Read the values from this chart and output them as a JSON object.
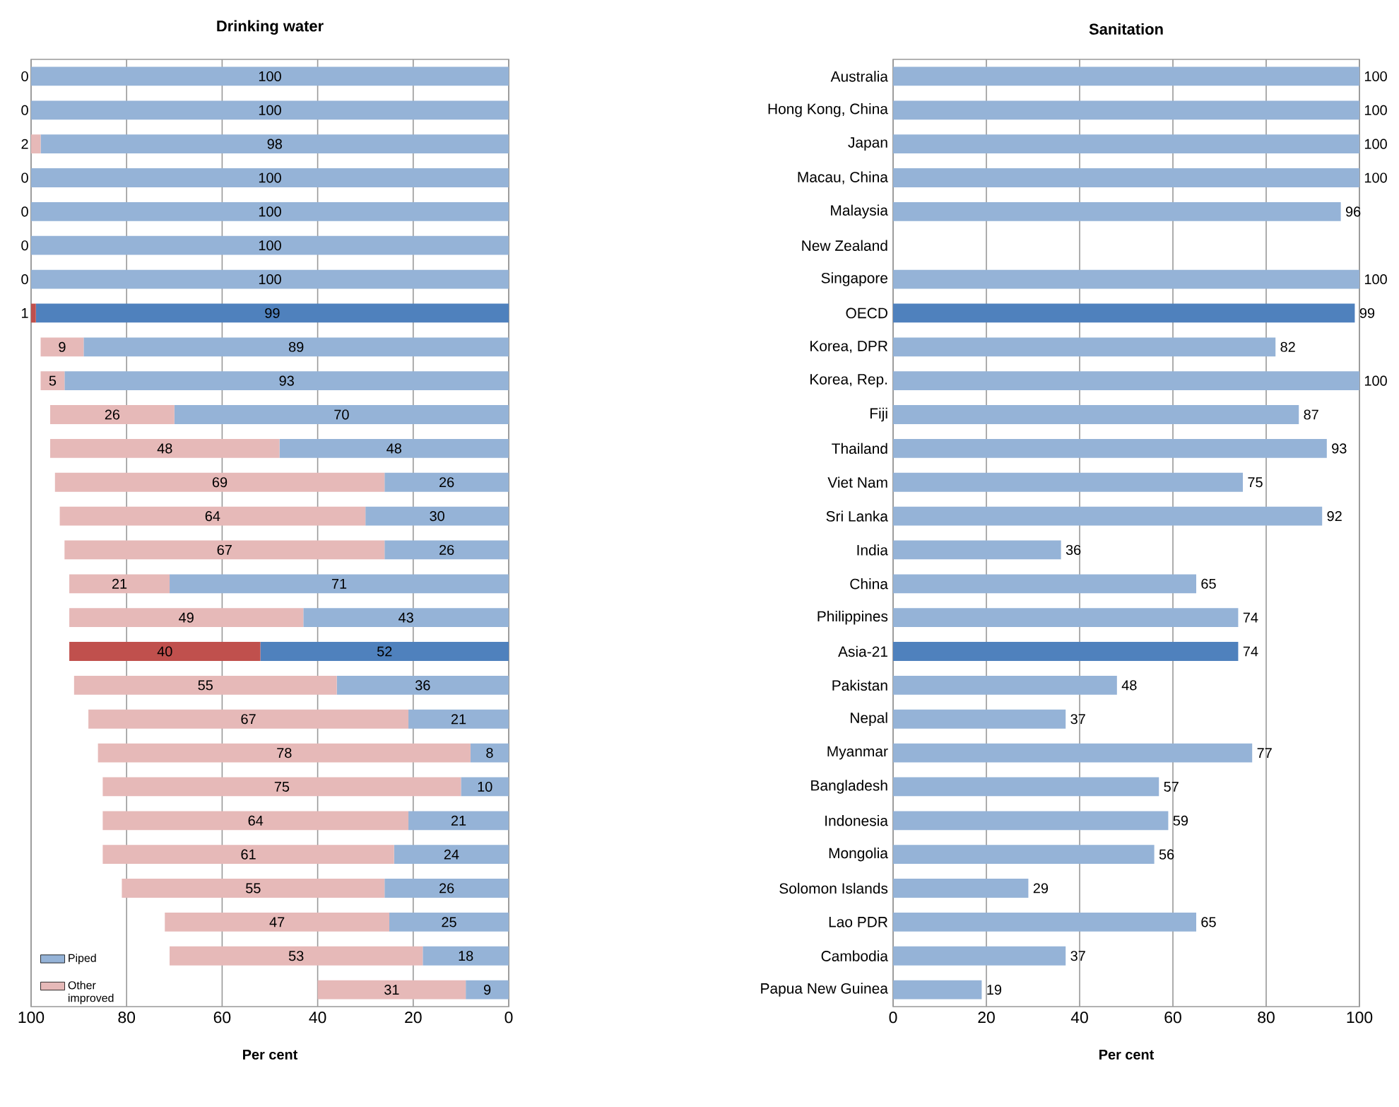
{
  "chart_data": [
    {
      "type": "bar",
      "orientation": "horizontal",
      "stacked": true,
      "title": "Drinking water",
      "xlabel": "Per cent",
      "categories": [
        null,
        null,
        null,
        null,
        null,
        null,
        null,
        null,
        null,
        null,
        null,
        null,
        null,
        null,
        null,
        null,
        null,
        null,
        null,
        null,
        null,
        null,
        null,
        null,
        null,
        null,
        null,
        null
      ],
      "series": [
        {
          "name": "Piped",
          "color": "#95b3d7",
          "colors": [
            "#95b3d7",
            "#95b3d7",
            "#95b3d7",
            "#95b3d7",
            "#95b3d7",
            "#95b3d7",
            "#95b3d7",
            "#4f81bd",
            "#95b3d7",
            "#95b3d7",
            "#95b3d7",
            "#95b3d7",
            "#95b3d7",
            "#95b3d7",
            "#95b3d7",
            "#95b3d7",
            "#95b3d7",
            "#4f81bd",
            "#95b3d7",
            "#95b3d7",
            "#95b3d7",
            "#95b3d7",
            "#95b3d7",
            "#95b3d7",
            "#95b3d7",
            "#95b3d7",
            "#95b3d7",
            "#95b3d7"
          ],
          "values": [
            100,
            100,
            98,
            100,
            100,
            100,
            100,
            99,
            89,
            93,
            70,
            48,
            26,
            30,
            26,
            71,
            43,
            52,
            36,
            21,
            8,
            10,
            21,
            24,
            26,
            25,
            18,
            9
          ]
        },
        {
          "name": "Other improved",
          "color": "#e6b9b8",
          "colors": [
            "#e6b9b8",
            "#e6b9b8",
            "#e6b9b8",
            "#e6b9b8",
            "#e6b9b8",
            "#e6b9b8",
            "#e6b9b8",
            "#c0504d",
            "#e6b9b8",
            "#e6b9b8",
            "#e6b9b8",
            "#e6b9b8",
            "#e6b9b8",
            "#e6b9b8",
            "#e6b9b8",
            "#e6b9b8",
            "#e6b9b8",
            "#c0504d",
            "#e6b9b8",
            "#e6b9b8",
            "#e6b9b8",
            "#e6b9b8",
            "#e6b9b8",
            "#e6b9b8",
            "#e6b9b8",
            "#e6b9b8",
            "#e6b9b8",
            "#e6b9b8"
          ],
          "values": [
            0,
            0,
            2,
            0,
            0,
            0,
            0,
            1,
            9,
            5,
            26,
            48,
            69,
            64,
            67,
            21,
            49,
            40,
            55,
            67,
            78,
            75,
            64,
            61,
            55,
            47,
            53,
            31
          ]
        }
      ],
      "xlim": [
        100,
        0
      ],
      "xticks": [
        100,
        80,
        60,
        40,
        20,
        0
      ],
      "grid": "x",
      "legend": "bottom left",
      "data_labels": true,
      "tick_labels": "x"
    },
    {
      "type": "bar",
      "orientation": "horizontal",
      "title": "Sanitation",
      "xlabel": "Per cent",
      "categories": [
        "Australia",
        "Hong Kong, China",
        "Japan",
        "Macau, China",
        "Malaysia",
        "New Zealand",
        "Singapore",
        "OECD",
        "Korea, DPR",
        "Korea, Rep.",
        "Fiji",
        "Thailand",
        "Viet Nam",
        "Sri Lanka",
        "India",
        "China",
        "Philippines",
        "Asia-21",
        "Pakistan",
        "Nepal",
        "Myanmar",
        "Bangladesh",
        "Indonesia",
        "Mongolia",
        "Solomon Islands",
        "Lao PDR",
        "Cambodia",
        "Papua New Guinea"
      ],
      "series": [
        {
          "colors": [
            "#95b3d7",
            "#95b3d7",
            "#95b3d7",
            "#95b3d7",
            "#95b3d7",
            "#95b3d7",
            "#95b3d7",
            "#4f81bd",
            "#95b3d7",
            "#95b3d7",
            "#95b3d7",
            "#95b3d7",
            "#95b3d7",
            "#95b3d7",
            "#95b3d7",
            "#95b3d7",
            "#95b3d7",
            "#4f81bd",
            "#95b3d7",
            "#95b3d7",
            "#95b3d7",
            "#95b3d7",
            "#95b3d7",
            "#95b3d7",
            "#95b3d7",
            "#95b3d7",
            "#95b3d7",
            "#95b3d7"
          ],
          "values": [
            100,
            100,
            100,
            100,
            96,
            null,
            100,
            99,
            82,
            100,
            87,
            93,
            75,
            92,
            36,
            65,
            74,
            74,
            48,
            37,
            77,
            57,
            59,
            56,
            29,
            65,
            37,
            19
          ]
        }
      ],
      "xlim": [
        0,
        100
      ],
      "xticks": [
        0,
        20,
        40,
        60,
        80,
        100
      ],
      "grid": "x",
      "data_labels": true
    }
  ]
}
